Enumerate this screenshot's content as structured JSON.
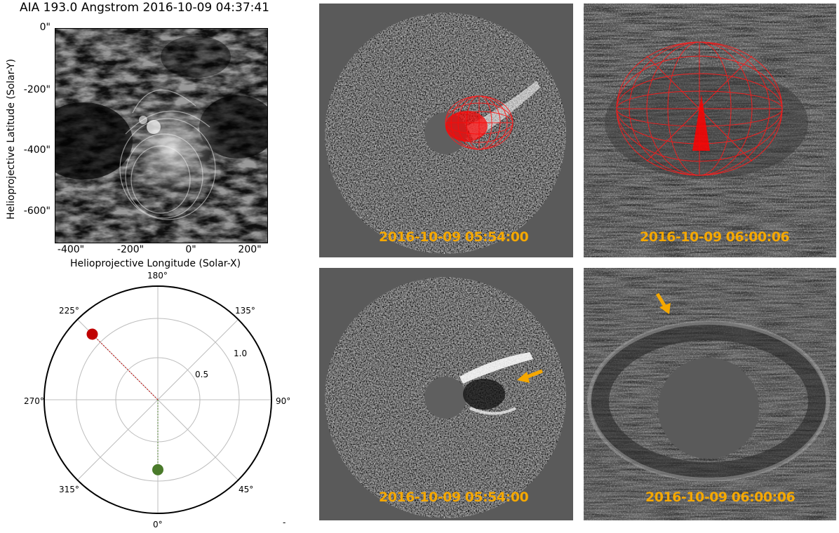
{
  "aia": {
    "title": "AIA 193.0 Angstrom 2016-10-09 04:37:41",
    "y_ticks": [
      "0\"",
      "-200\"",
      "-400\"",
      "-600\""
    ],
    "x_ticks": [
      "-400\"",
      "-200\"",
      "0\"",
      "200\""
    ],
    "xlabel": "Helioprojective Longitude (Solar-X)",
    "ylabel": "Helioprojective Latitude (Solar-Y)"
  },
  "polar": {
    "angle_labels": [
      "180°",
      "135°",
      "90°",
      "45°",
      "0°",
      "315°",
      "270°",
      "225°"
    ],
    "radial_labels": [
      "0.5",
      "1.0"
    ],
    "markers": [
      {
        "name": "red",
        "angle_deg": 225,
        "radius": 1.14,
        "color": "#c00000"
      },
      {
        "name": "green",
        "angle_deg": 0,
        "radius": 0.86,
        "color": "#4a7a2a"
      }
    ],
    "stray_mark": "-"
  },
  "coronagraph": {
    "stamp_color": "#f5a800",
    "panels": [
      {
        "timestamp": "2016-10-09 05:54:00"
      },
      {
        "timestamp": "2016-10-09 06:00:06"
      },
      {
        "timestamp": "2016-10-09 05:54:00"
      },
      {
        "timestamp": "2016-10-09 06:00:06"
      }
    ]
  }
}
